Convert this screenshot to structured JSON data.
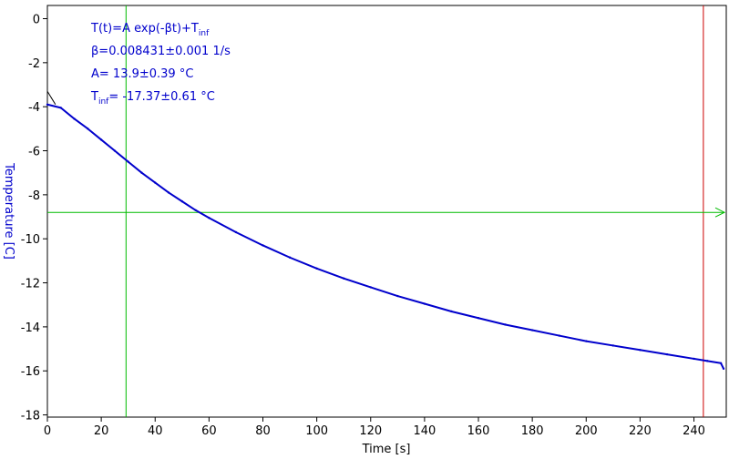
{
  "chart_data": {
    "type": "line",
    "xlabel": "Time [s]",
    "ylabel": "Temperature [C]",
    "xlim": [
      0,
      252
    ],
    "ylim": [
      -18.1,
      0.6
    ],
    "x_ticks": [
      0,
      20,
      40,
      60,
      80,
      100,
      120,
      140,
      160,
      180,
      200,
      220,
      240
    ],
    "y_ticks": [
      0,
      -2,
      -4,
      -6,
      -8,
      -10,
      -12,
      -14,
      -16,
      -18
    ],
    "grid": false,
    "series": [
      {
        "x": [
          0,
          5,
          10,
          15,
          20,
          25,
          30,
          35,
          40,
          45,
          50,
          55,
          60,
          70,
          80,
          90,
          100,
          110,
          120,
          130,
          140,
          150,
          160,
          170,
          180,
          190,
          200,
          210,
          220,
          230,
          240,
          245,
          250,
          251
        ],
        "y": [
          -3.9,
          -4.05,
          -4.55,
          -5.0,
          -5.5,
          -6.0,
          -6.5,
          -7.0,
          -7.45,
          -7.9,
          -8.3,
          -8.7,
          -9.05,
          -9.7,
          -10.3,
          -10.85,
          -11.35,
          -11.8,
          -12.2,
          -12.6,
          -12.95,
          -13.3,
          -13.6,
          -13.9,
          -14.15,
          -14.4,
          -14.65,
          -14.85,
          -15.05,
          -15.25,
          -15.45,
          -15.55,
          -15.65,
          -15.9
        ],
        "color": "#0000cc"
      }
    ],
    "fit_curve": {
      "x": [
        0,
        1,
        2,
        3
      ],
      "y": [
        -3.3,
        -3.5,
        -3.7,
        -3.9
      ],
      "color": "#000000"
    },
    "cursors": {
      "vertical_green_x": 29.2,
      "vertical_red_x": 243.5,
      "horizontal_green_y": -8.8,
      "green_color": "#00bb00",
      "red_color": "#cc0000"
    },
    "annotations": [
      {
        "main": "T(t)=A exp(-βt)+T",
        "sub": "inf",
        "tail": ""
      },
      {
        "main": "β=0.008431±0.001 1/s",
        "sub": "",
        "tail": ""
      },
      {
        "main": "A= 13.9±0.39 °C",
        "sub": "",
        "tail": ""
      },
      {
        "main": "T",
        "sub": "inf",
        "tail": "= -17.37±0.61 °C"
      }
    ],
    "annotation_color": "#0000cc"
  }
}
